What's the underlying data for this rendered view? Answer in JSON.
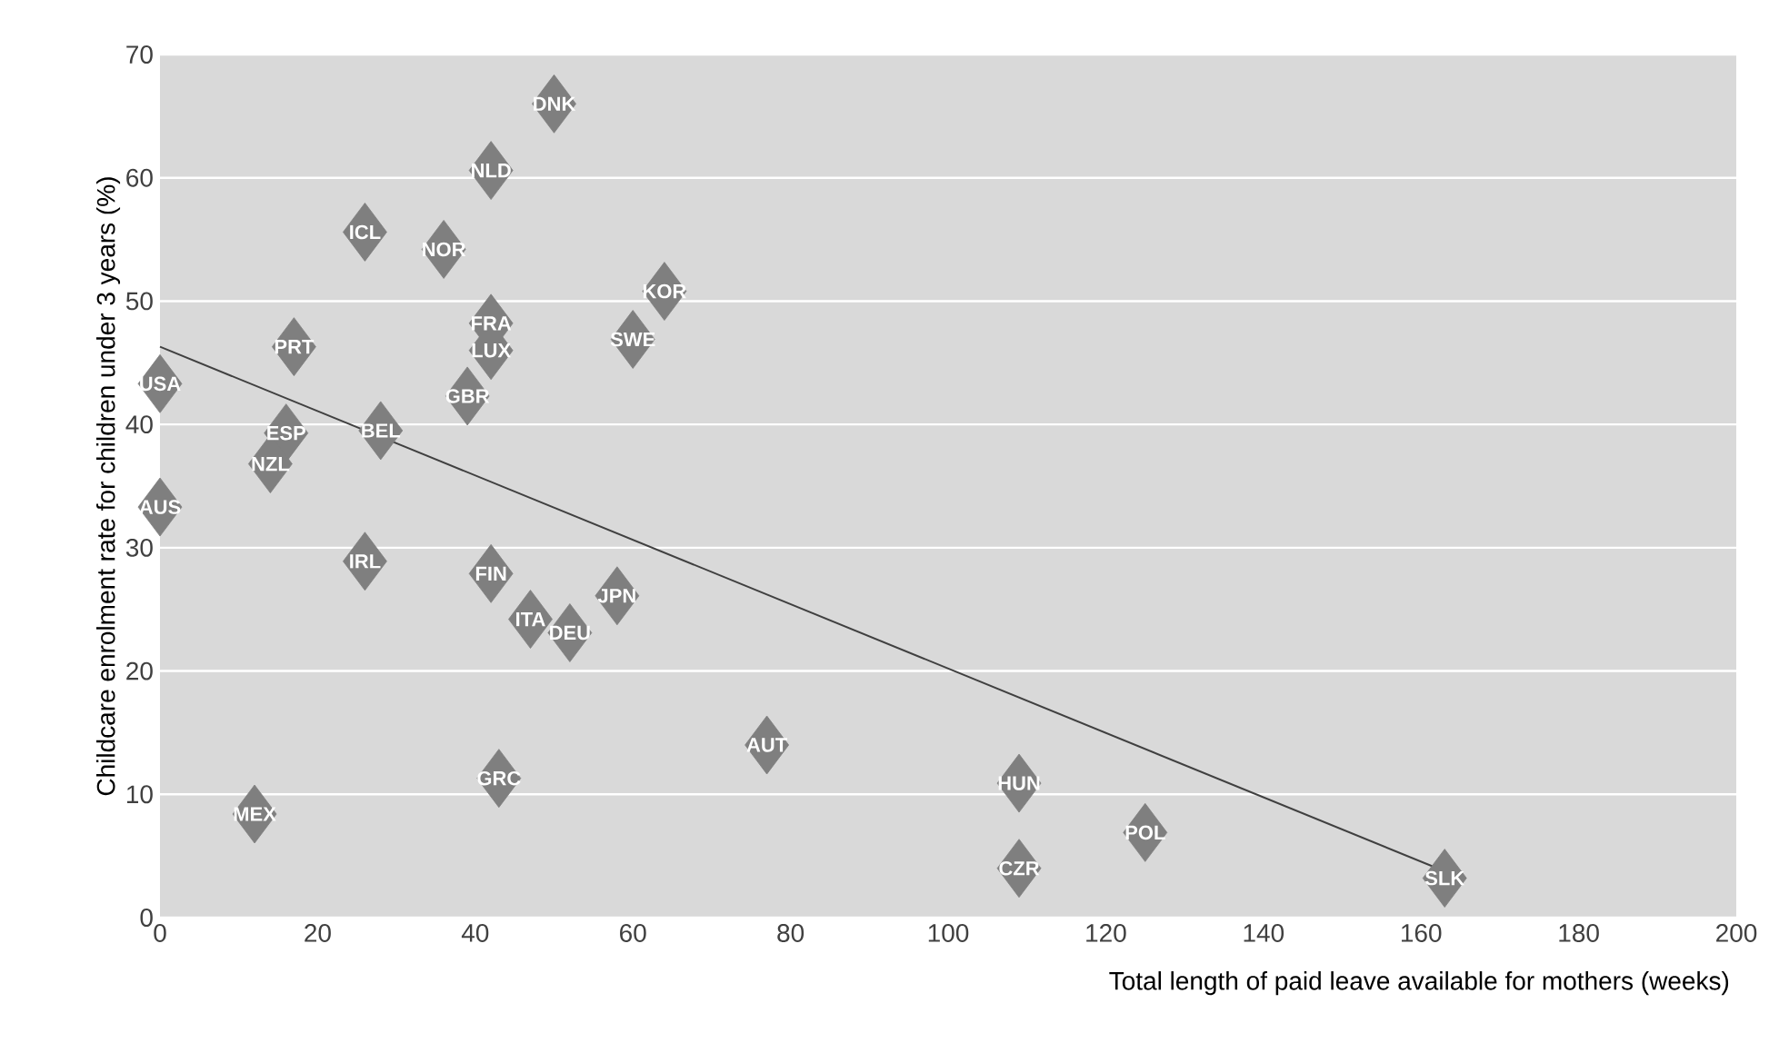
{
  "chart_data": {
    "type": "scatter",
    "xlabel": "Total length of paid leave available for mothers (weeks)",
    "ylabel": "Childcare enrolment rate for children under 3 years (%)",
    "xlim": [
      0,
      200
    ],
    "ylim": [
      0,
      70
    ],
    "xticks": [
      0,
      20,
      40,
      60,
      80,
      100,
      120,
      140,
      160,
      180,
      200
    ],
    "yticks": [
      0,
      10,
      20,
      30,
      40,
      50,
      60,
      70
    ],
    "grid": "y",
    "marker": "diamond",
    "series": [
      {
        "color": "#7f7f7f",
        "x": [
          50,
          42,
          26,
          36,
          64,
          42,
          42,
          60,
          17,
          39,
          0,
          16,
          28,
          14,
          0,
          26,
          42,
          58,
          47,
          52,
          43,
          77,
          12,
          109,
          109,
          125,
          163
        ],
        "values": [
          66,
          60.6,
          55.6,
          54.2,
          50.8,
          48.2,
          46,
          46.9,
          46.3,
          42.3,
          43.3,
          39.3,
          39.5,
          36.8,
          33.3,
          28.9,
          27.9,
          26.1,
          24.2,
          23.1,
          11.3,
          14,
          8.4,
          10.9,
          4,
          6.9,
          3.2
        ]
      },
      {
        "type": "line",
        "color": "#404040",
        "marker": "none",
        "x": [
          0,
          164
        ],
        "values": [
          46.3,
          3.5
        ]
      }
    ],
    "annotations": [
      {
        "text": "DNK",
        "x": 50,
        "y": 66
      },
      {
        "text": "NLD",
        "x": 42,
        "y": 60.6
      },
      {
        "text": "ICL",
        "x": 26,
        "y": 55.6
      },
      {
        "text": "NOR",
        "x": 36,
        "y": 54.2
      },
      {
        "text": "KOR",
        "x": 64,
        "y": 50.8
      },
      {
        "text": "FRA",
        "x": 42,
        "y": 48.2
      },
      {
        "text": "LUX",
        "x": 42,
        "y": 46
      },
      {
        "text": "SWE",
        "x": 60,
        "y": 46.9
      },
      {
        "text": "PRT",
        "x": 17,
        "y": 46.3
      },
      {
        "text": "GBR",
        "x": 39,
        "y": 42.3
      },
      {
        "text": "USA",
        "x": 0,
        "y": 43.3
      },
      {
        "text": "ESP",
        "x": 16,
        "y": 39.3
      },
      {
        "text": "BEL",
        "x": 28,
        "y": 39.5
      },
      {
        "text": "NZL",
        "x": 14,
        "y": 36.8
      },
      {
        "text": "AUS",
        "x": 0,
        "y": 33.3
      },
      {
        "text": "IRL",
        "x": 26,
        "y": 28.9
      },
      {
        "text": "FIN",
        "x": 42,
        "y": 27.9
      },
      {
        "text": "JPN",
        "x": 58,
        "y": 26.1
      },
      {
        "text": "ITA",
        "x": 47,
        "y": 24.2
      },
      {
        "text": "DEU",
        "x": 52,
        "y": 23.1
      },
      {
        "text": "GRC",
        "x": 43,
        "y": 11.3
      },
      {
        "text": "AUT",
        "x": 77,
        "y": 14
      },
      {
        "text": "MEX",
        "x": 12,
        "y": 8.4
      },
      {
        "text": "HUN",
        "x": 109,
        "y": 10.9
      },
      {
        "text": "CZR",
        "x": 109,
        "y": 4
      },
      {
        "text": "POL",
        "x": 125,
        "y": 6.9
      },
      {
        "text": "SLK",
        "x": 163,
        "y": 3.2
      }
    ]
  }
}
